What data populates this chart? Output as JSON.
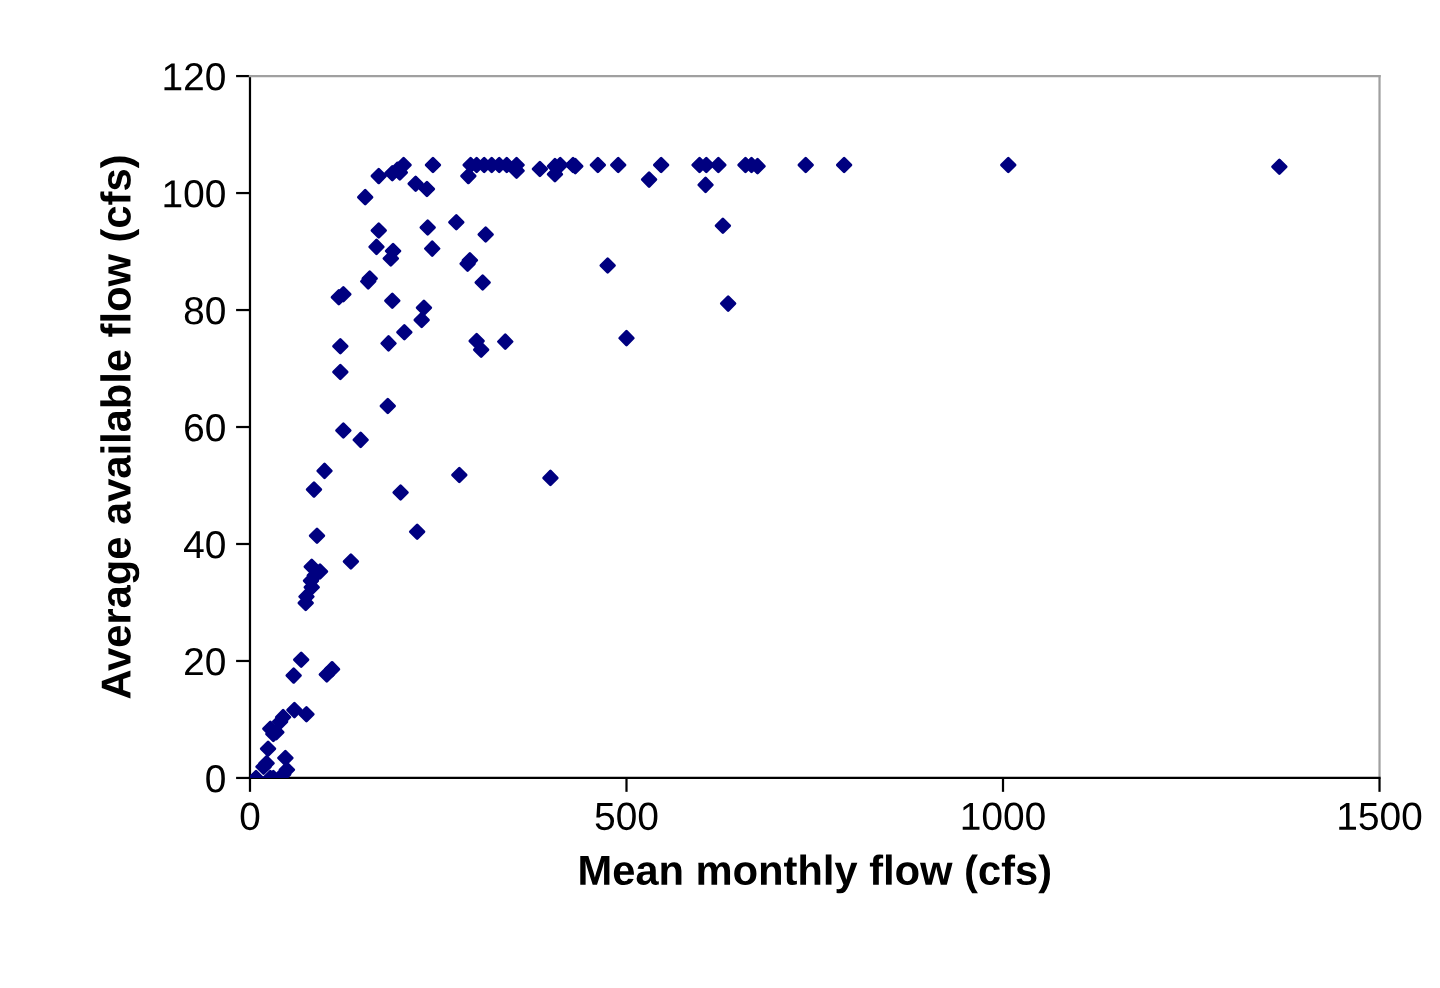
{
  "chart_data": {
    "type": "scatter",
    "xlabel": "Mean monthly flow (cfs)",
    "ylabel": "Average available flow (cfs)",
    "xlim": [
      0,
      1500
    ],
    "xticks": [
      0,
      500,
      1000,
      1500
    ],
    "ylim": [
      0,
      120
    ],
    "yticks": [
      0,
      20,
      40,
      60,
      80,
      100,
      120
    ],
    "grid": false,
    "legend": false,
    "marker": "diamond",
    "series": [
      {
        "color": "#000080",
        "x": [
          204,
          199,
          196,
          189,
          171,
          153,
          243,
          220,
          235,
          290,
          293,
          301,
          311,
          321,
          331,
          341,
          354,
          354,
          385,
          405,
          405,
          412,
          429,
          432,
          462,
          489,
          546,
          530,
          597,
          606,
          622,
          605,
          628,
          475,
          635,
          500,
          658,
          666,
          674,
          738,
          789,
          1007,
          1367,
          171,
          236,
          274,
          313,
          168,
          242,
          190,
          187,
          292,
          289,
          159,
          157,
          309,
          124,
          118,
          189,
          231,
          228,
          205,
          184,
          301,
          307,
          339,
          120,
          120,
          183,
          124,
          147,
          99,
          85,
          278,
          399,
          200,
          89,
          222,
          134,
          82,
          93,
          86,
          81,
          82,
          75,
          74,
          68,
          58,
          109,
          102,
          59,
          75,
          44,
          40,
          27,
          35,
          31,
          24,
          22,
          18,
          47,
          49,
          44,
          8,
          27,
          31
        ],
        "values": [
          104.8,
          103.5,
          104,
          103.4,
          102.9,
          99.3,
          104.8,
          101.6,
          100.7,
          102.9,
          104.8,
          104.8,
          104.8,
          104.8,
          104.8,
          104.8,
          104.8,
          103.8,
          104.1,
          104.6,
          103.2,
          104.8,
          104.8,
          104.6,
          104.8,
          104.8,
          104.8,
          102.3,
          104.8,
          104.8,
          104.8,
          101.4,
          94.4,
          87.6,
          81.1,
          75.2,
          104.8,
          104.8,
          104.6,
          104.8,
          104.8,
          104.8,
          104.5,
          93.6,
          94.1,
          95,
          92.9,
          90.8,
          90.5,
          90.1,
          88.8,
          88.5,
          87.9,
          85.4,
          84.9,
          84.7,
          82.7,
          82.2,
          81.6,
          80.4,
          78.3,
          76.2,
          74.3,
          74.7,
          73.2,
          74.6,
          73.8,
          69.4,
          63.6,
          59.4,
          57.8,
          52.5,
          49.3,
          51.8,
          51.3,
          48.8,
          41.4,
          42.1,
          37,
          36.1,
          35.3,
          34.6,
          33.7,
          32.6,
          31,
          29.9,
          20.2,
          17.5,
          18.6,
          17.7,
          11.6,
          10.9,
          10.4,
          9.6,
          8.4,
          7.8,
          7.5,
          5,
          2.5,
          1.9,
          3.4,
          1.4,
          0.6,
          0,
          0,
          0
        ]
      }
    ]
  }
}
